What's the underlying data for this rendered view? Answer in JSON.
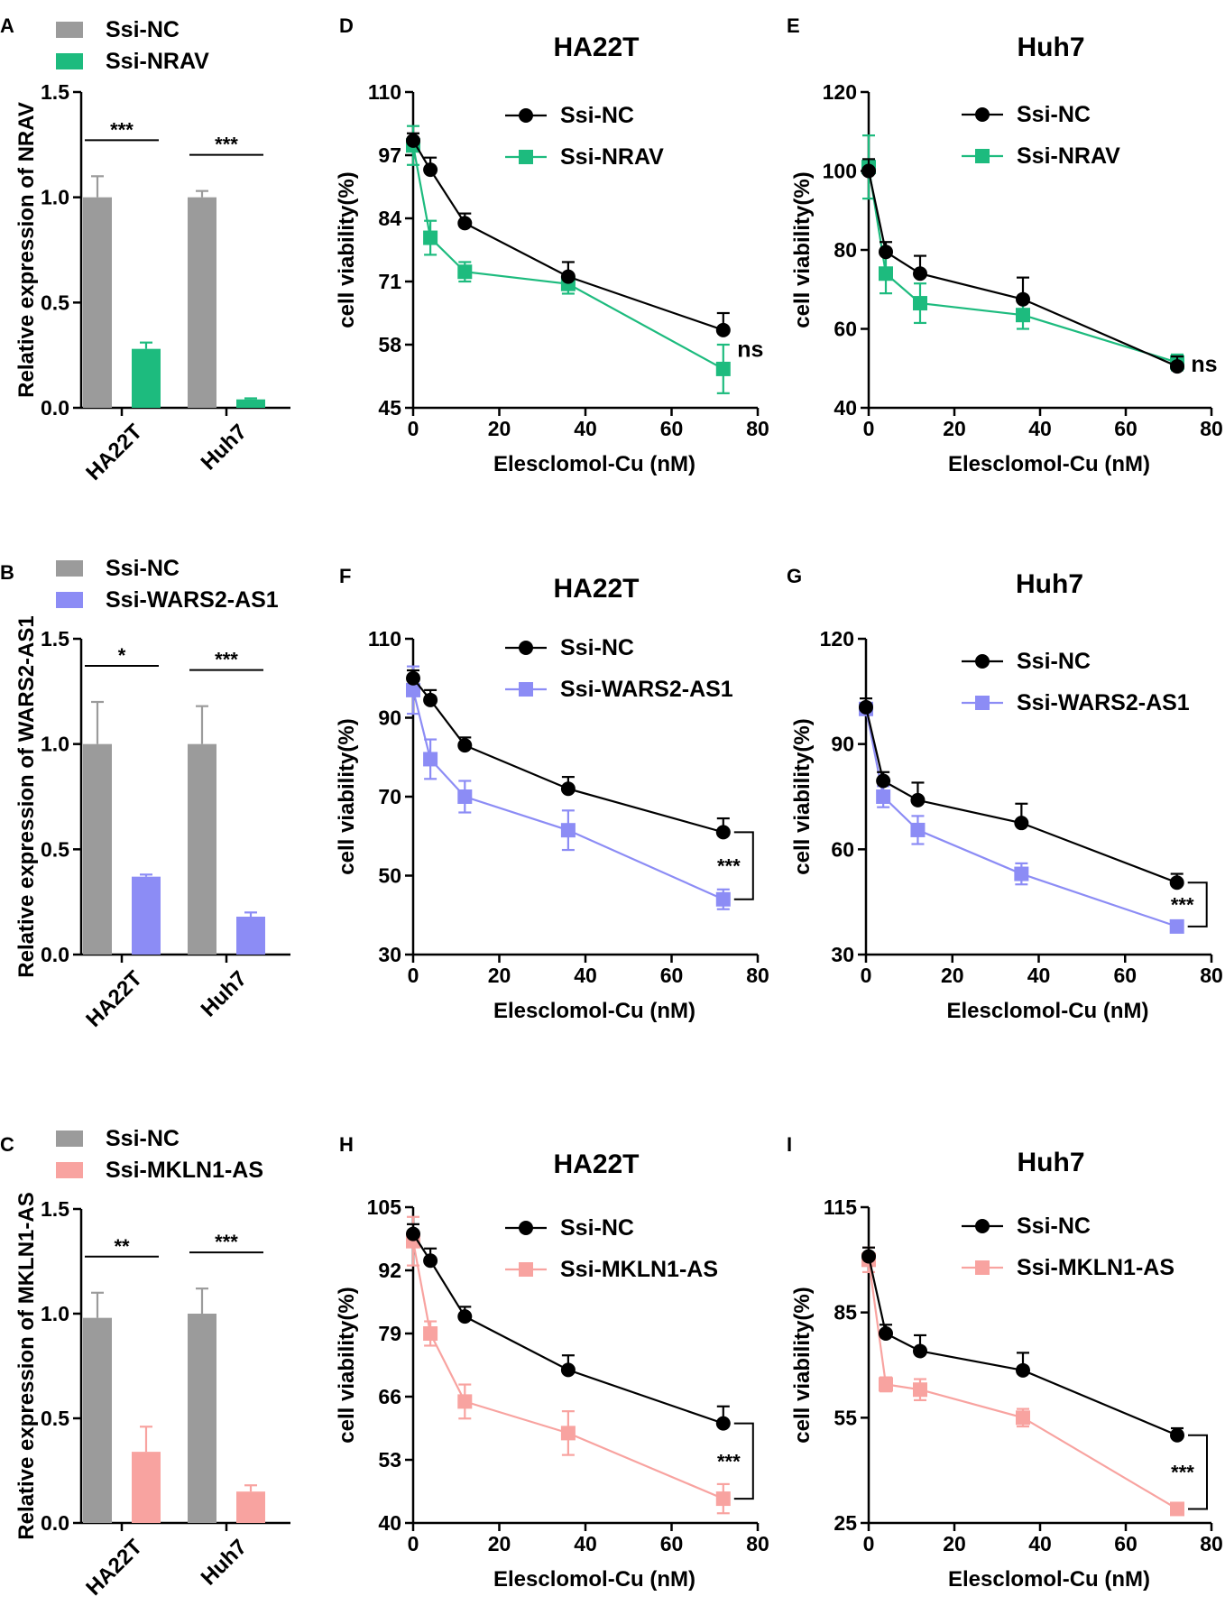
{
  "chart_data": [
    {
      "panel": "A",
      "type": "bar",
      "categories": [
        "HA22T",
        "Huh7"
      ],
      "series": [
        {
          "name": "Ssi-NC",
          "color": "#9b9b9b",
          "values": [
            1.0,
            1.0
          ],
          "errors": [
            0.1,
            0.03
          ]
        },
        {
          "name": "Ssi-NRAV",
          "color": "#1dbb7e",
          "values": [
            0.28,
            0.04
          ],
          "errors": [
            0.03,
            0.005
          ]
        }
      ],
      "significance": [
        "***",
        "***"
      ],
      "ylabel": "Relative expression of NRAV",
      "ylim": [
        0,
        1.5
      ],
      "yticks": [
        "0.0",
        "0.5",
        "1.0",
        "1.5"
      ]
    },
    {
      "panel": "B",
      "type": "bar",
      "categories": [
        "HA22T",
        "Huh7"
      ],
      "series": [
        {
          "name": "Ssi-NC",
          "color": "#9b9b9b",
          "values": [
            1.0,
            1.0
          ],
          "errors": [
            0.2,
            0.18
          ]
        },
        {
          "name": "Ssi-WARS2-AS1",
          "color": "#8c8cf5",
          "values": [
            0.37,
            0.18
          ],
          "errors": [
            0.01,
            0.02
          ]
        }
      ],
      "significance": [
        "*",
        "***"
      ],
      "ylabel": "Relative expression of WARS2-AS1",
      "ylim": [
        0,
        1.5
      ],
      "yticks": [
        "0.0",
        "0.5",
        "1.0",
        "1.5"
      ]
    },
    {
      "panel": "C",
      "type": "bar",
      "categories": [
        "HA22T",
        "Huh7"
      ],
      "series": [
        {
          "name": "Ssi-NC",
          "color": "#9b9b9b",
          "values": [
            0.98,
            1.0
          ],
          "errors": [
            0.12,
            0.12
          ]
        },
        {
          "name": "Ssi-MKLN1-AS",
          "color": "#f8a3a0",
          "values": [
            0.34,
            0.15
          ],
          "errors": [
            0.12,
            0.03
          ]
        }
      ],
      "significance": [
        "**",
        "***"
      ],
      "ylabel": "Relative expression of MKLN1-AS",
      "ylim": [
        0,
        1.5
      ],
      "yticks": [
        "0.0",
        "0.5",
        "1.0",
        "1.5"
      ]
    },
    {
      "panel": "D",
      "type": "line",
      "title": "HA22T",
      "x": [
        0,
        4,
        12,
        36,
        72
      ],
      "series": [
        {
          "name": "Ssi-NC",
          "color": "#000000",
          "marker": "circle",
          "values": [
            100,
            94,
            83,
            72,
            61
          ],
          "errors": [
            1.5,
            2.5,
            2,
            3,
            3.5
          ]
        },
        {
          "name": "Ssi-NRAV",
          "color": "#1dbb7e",
          "marker": "square",
          "values": [
            99,
            80,
            73,
            70.5,
            53
          ],
          "errors": [
            4,
            3.5,
            2,
            2,
            5
          ]
        }
      ],
      "annotation": "ns",
      "xlabel": "Elesclomol-Cu (nM)",
      "ylabel": "cell viability(%)",
      "xlim": [
        0,
        80
      ],
      "ylim": [
        45,
        110
      ],
      "xticks": [
        0,
        20,
        40,
        60,
        80
      ],
      "yticks": [
        45,
        58,
        71,
        84,
        97,
        110
      ]
    },
    {
      "panel": "E",
      "type": "line",
      "title": "Huh7",
      "x": [
        0,
        4,
        12,
        36,
        72
      ],
      "series": [
        {
          "name": "Ssi-NC",
          "color": "#000000",
          "marker": "circle",
          "values": [
            100,
            79.5,
            74,
            67.5,
            50.5
          ],
          "errors": [
            3,
            2.5,
            4.5,
            5.5,
            2.5
          ]
        },
        {
          "name": "Ssi-NRAV",
          "color": "#1dbb7e",
          "marker": "square",
          "values": [
            101,
            74,
            66.5,
            63.5,
            51.5
          ],
          "errors": [
            8,
            5,
            5,
            3.5,
            2
          ]
        }
      ],
      "annotation": "ns",
      "xlabel": "Elesclomol-Cu (nM)",
      "ylabel": "cell viability(%)",
      "xlim": [
        0,
        80
      ],
      "ylim": [
        40,
        120
      ],
      "xticks": [
        0,
        20,
        40,
        60,
        80
      ],
      "yticks": [
        40,
        60,
        80,
        100,
        120
      ]
    },
    {
      "panel": "F",
      "type": "line",
      "title": "HA22T",
      "x": [
        0,
        4,
        12,
        36,
        72
      ],
      "series": [
        {
          "name": "Ssi-NC",
          "color": "#000000",
          "marker": "circle",
          "values": [
            100,
            94.5,
            83,
            72,
            61
          ],
          "errors": [
            2,
            2.5,
            2,
            3,
            3.5
          ]
        },
        {
          "name": "Ssi-WARS2-AS1",
          "color": "#8c8cf5",
          "marker": "square",
          "values": [
            97,
            79.5,
            70,
            61.5,
            44
          ],
          "errors": [
            6,
            5,
            4,
            5,
            2.5
          ]
        }
      ],
      "annotation": "***",
      "xlabel": "Elesclomol-Cu (nM)",
      "ylabel": "cell viability(%)",
      "xlim": [
        0,
        80
      ],
      "ylim": [
        30,
        110
      ],
      "xticks": [
        0,
        20,
        40,
        60,
        80
      ],
      "yticks": [
        30,
        50,
        70,
        90,
        110
      ]
    },
    {
      "panel": "G",
      "type": "line",
      "title": "Huh7",
      "x": [
        0,
        4,
        12,
        36,
        72
      ],
      "series": [
        {
          "name": "Ssi-NC",
          "color": "#000000",
          "marker": "circle",
          "values": [
            100.5,
            79.5,
            74,
            67.5,
            50.5
          ],
          "errors": [
            2.5,
            2.5,
            5,
            5.5,
            2.5
          ]
        },
        {
          "name": "Ssi-WARS2-AS1",
          "color": "#8c8cf5",
          "marker": "square",
          "values": [
            100,
            75,
            65.5,
            53,
            38
          ],
          "errors": [
            1.5,
            3,
            4,
            3,
            1.5
          ]
        }
      ],
      "annotation": "***",
      "xlabel": "Elesclomol-Cu (nM)",
      "ylabel": "cell viability(%)",
      "xlim": [
        0,
        80
      ],
      "ylim": [
        30,
        120
      ],
      "xticks": [
        0,
        20,
        40,
        60,
        80
      ],
      "yticks": [
        30,
        60,
        90,
        120
      ]
    },
    {
      "panel": "H",
      "type": "line",
      "title": "HA22T",
      "x": [
        0,
        4,
        12,
        36,
        72
      ],
      "series": [
        {
          "name": "Ssi-NC",
          "color": "#000000",
          "marker": "circle",
          "values": [
            99.5,
            94,
            82.5,
            71.5,
            60.5
          ],
          "errors": [
            2,
            2.5,
            2,
            3,
            3.5
          ]
        },
        {
          "name": "Ssi-MKLN1-AS",
          "color": "#f8a3a0",
          "marker": "square",
          "values": [
            98,
            79,
            65,
            58.5,
            45
          ],
          "errors": [
            5,
            2.5,
            3.5,
            4.5,
            3
          ]
        }
      ],
      "annotation": "***",
      "xlabel": "Elesclomol-Cu (nM)",
      "ylabel": "cell viability(%)",
      "xlim": [
        0,
        80
      ],
      "ylim": [
        40,
        105
      ],
      "xticks": [
        0,
        20,
        40,
        60,
        80
      ],
      "yticks": [
        40,
        53,
        66,
        79,
        92,
        105
      ]
    },
    {
      "panel": "I",
      "type": "line",
      "title": "Huh7",
      "x": [
        0,
        4,
        12,
        36,
        72
      ],
      "series": [
        {
          "name": "Ssi-NC",
          "color": "#000000",
          "marker": "circle",
          "values": [
            101,
            79,
            74,
            68.5,
            50
          ],
          "errors": [
            2.5,
            2.5,
            4.5,
            5,
            2
          ]
        },
        {
          "name": "Ssi-MKLN1-AS",
          "color": "#f8a3a0",
          "marker": "square",
          "values": [
            100,
            64.5,
            63,
            55,
            29
          ],
          "errors": [
            3.5,
            2,
            3,
            2.5,
            1.5
          ]
        }
      ],
      "annotation": "***",
      "xlabel": "Elesclomol-Cu (nM)",
      "ylabel": "cell viability(%)",
      "xlim": [
        0,
        80
      ],
      "ylim": [
        25,
        115
      ],
      "xticks": [
        0,
        20,
        40,
        60,
        80
      ],
      "yticks": [
        25,
        55,
        85,
        115
      ]
    }
  ]
}
